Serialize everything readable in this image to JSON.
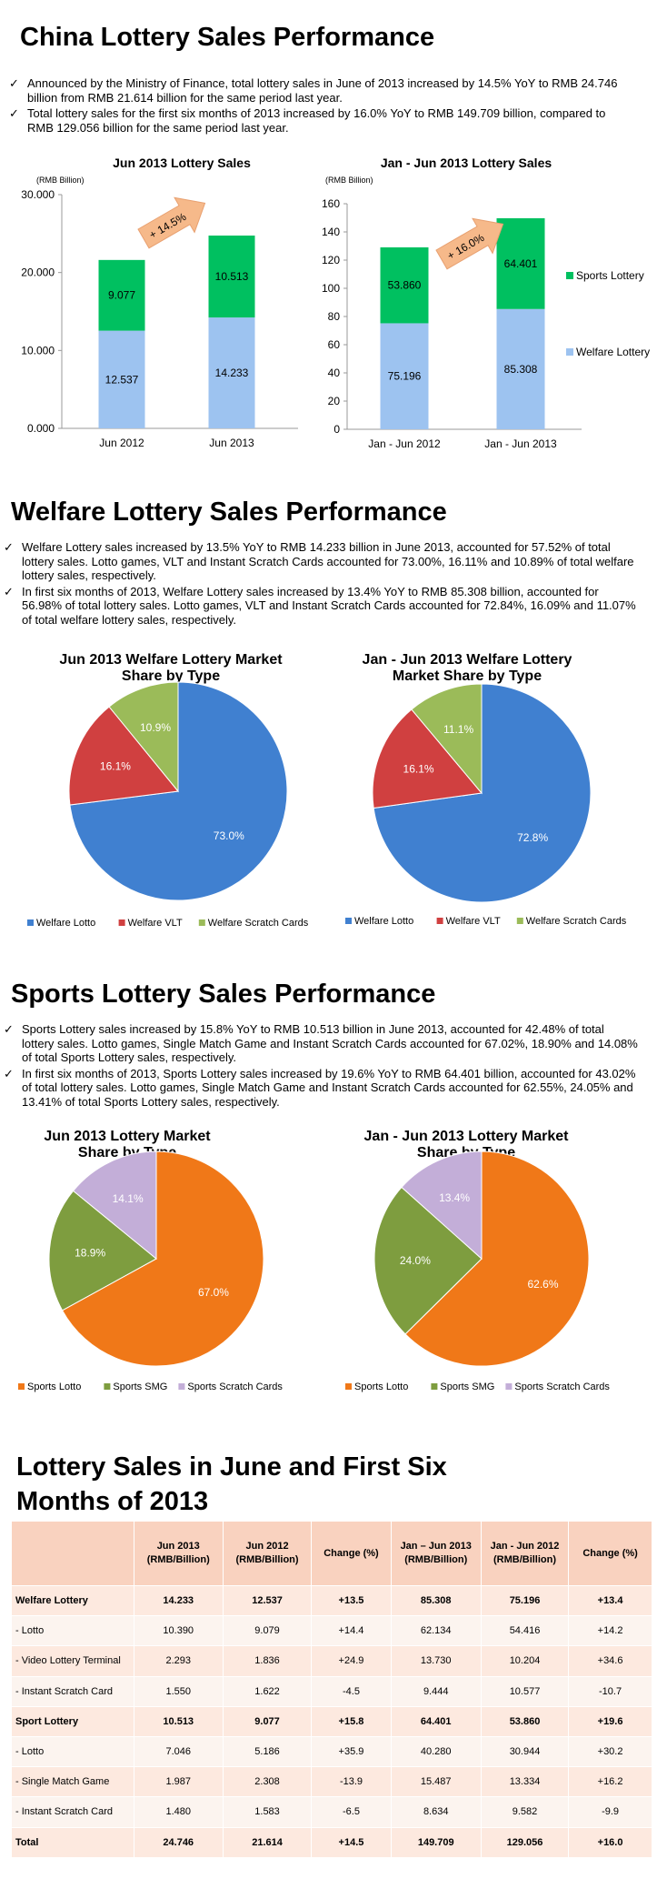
{
  "section1": {
    "title": "China Lottery Sales Performance",
    "bullets": [
      "Announced by the Ministry of Finance, total lottery sales in June of 2013 increased by 14.5% YoY to RMB 24.746 billion from RMB 21.614 billion for the same period last year.",
      "Total lottery sales for the first six months of 2013 increased by 16.0% YoY to RMB 149.709 billion, compared to RMB 129.056 billion for the same period last year."
    ]
  },
  "section2": {
    "title": "Welfare Lottery Sales Performance",
    "bullets": [
      "Welfare Lottery sales increased by 13.5% YoY to RMB 14.233 billion in June 2013, accounted for 57.52% of total lottery sales. Lotto games, VLT and Instant Scratch Cards accounted for 73.00%, 16.11% and 10.89% of total welfare lottery sales, respectively.",
      "In first six months of 2013, Welfare Lottery sales increased by 13.4% YoY to RMB 85.308 billion, accounted for 56.98% of total lottery sales. Lotto games, VLT and Instant Scratch Cards accounted for 72.84%, 16.09% and 11.07% of total welfare lottery sales, respectively."
    ]
  },
  "section3": {
    "title": "Sports Lottery Sales Performance",
    "bullets": [
      "Sports Lottery sales increased by 15.8% YoY to RMB 10.513 billion in June 2013, accounted for 42.48% of total lottery sales. Lotto games, Single Match Game and Instant Scratch Cards accounted for 67.02%, 18.90% and 14.08% of total Sports Lottery sales, respectively.",
      "In first six months of 2013, Sports Lottery sales increased by 19.6% YoY to RMB 64.401 billion, accounted for 43.02% of total lottery sales. Lotto games, Single Match Game and Instant Scratch Cards accounted for 62.55%, 24.05% and 13.41% of total Sports Lottery sales, respectively."
    ]
  },
  "section4": {
    "title_line1": "Lottery Sales in June and First Six",
    "title_line2": "Months of 2013"
  },
  "chart_data": [
    {
      "type": "bar",
      "title": "Jun 2013 Lottery Sales",
      "unit_label": "(RMB Billion)",
      "categories": [
        "Jun 2012",
        "Jun 2013"
      ],
      "series": [
        {
          "name": "Welfare Lottery",
          "values": [
            12.537,
            14.233
          ],
          "labels": [
            "12.537",
            "14.233"
          ],
          "color": "#9dc3f0"
        },
        {
          "name": "Sports Lottery",
          "values": [
            9.077,
            10.513
          ],
          "labels": [
            "9.077",
            "10.513"
          ],
          "color": "#00c060"
        }
      ],
      "ylim": [
        0,
        30
      ],
      "yticks": [
        "0.000",
        "10.000",
        "20.000",
        "30.000"
      ],
      "annotation": "+ 14.5%",
      "stacked": true
    },
    {
      "type": "bar",
      "title": "Jan - Jun 2013 Lottery Sales",
      "unit_label": "(RMB Billion)",
      "categories": [
        "Jan - Jun 2012",
        "Jan - Jun 2013"
      ],
      "series": [
        {
          "name": "Welfare Lottery",
          "values": [
            75.196,
            85.308
          ],
          "labels": [
            "75.196",
            "85.308"
          ],
          "color": "#9dc3f0"
        },
        {
          "name": "Sports Lottery",
          "values": [
            53.86,
            64.401
          ],
          "labels": [
            "53.860",
            "64.401"
          ],
          "color": "#00c060"
        }
      ],
      "ylim": [
        0,
        160
      ],
      "yticks": [
        "0",
        "20",
        "40",
        "60",
        "80",
        "100",
        "120",
        "140",
        "160"
      ],
      "annotation": "+ 16.0%",
      "legend": [
        "Sports Lottery",
        "Welfare Lottery"
      ],
      "legend_position": "right",
      "stacked": true
    },
    {
      "type": "pie",
      "title_lines": [
        "Jun 2013 Welfare Lottery Market",
        "Share by Type"
      ],
      "slices": [
        {
          "name": "Welfare Lotto",
          "value": 73.0,
          "label": "73.0%",
          "color": "#4080d0"
        },
        {
          "name": "Welfare VLT",
          "value": 16.1,
          "label": "16.1%",
          "color": "#d04040"
        },
        {
          "name": "Welfare Scratch Cards",
          "value": 10.9,
          "label": "10.9%",
          "color": "#9bbb59"
        }
      ],
      "legend_position": "bottom"
    },
    {
      "type": "pie",
      "title_lines": [
        "Jan - Jun 2013 Welfare Lottery",
        "Market Share by Type"
      ],
      "slices": [
        {
          "name": "Welfare Lotto",
          "value": 72.8,
          "label": "72.8%",
          "color": "#4080d0"
        },
        {
          "name": "Welfare VLT",
          "value": 16.1,
          "label": "16.1%",
          "color": "#d04040"
        },
        {
          "name": "Welfare Scratch Cards",
          "value": 11.1,
          "label": "11.1%",
          "color": "#9bbb59"
        }
      ],
      "legend_position": "bottom"
    },
    {
      "type": "pie",
      "title_lines": [
        "Jun 2013 Lottery Market",
        "Share by Type"
      ],
      "slices": [
        {
          "name": "Sports Lotto",
          "value": 67.0,
          "label": "67.0%",
          "color": "#f07818"
        },
        {
          "name": "Sports SMG",
          "value": 18.9,
          "label": "18.9%",
          "color": "#7e9d3f"
        },
        {
          "name": "Sports Scratch Cards",
          "value": 14.1,
          "label": "14.1%",
          "color": "#c3aed8"
        }
      ],
      "legend_position": "bottom"
    },
    {
      "type": "pie",
      "title_lines": [
        "Jan - Jun 2013 Lottery Market",
        "Share by Type"
      ],
      "slices": [
        {
          "name": "Sports Lotto",
          "value": 62.6,
          "label": "62.6%",
          "color": "#f07818"
        },
        {
          "name": "Sports SMG",
          "value": 24.0,
          "label": "24.0%",
          "color": "#7e9d3f"
        },
        {
          "name": "Sports Scratch Cards",
          "value": 13.4,
          "label": "13.4%",
          "color": "#c3aed8"
        }
      ],
      "legend_position": "bottom"
    },
    {
      "type": "table",
      "headers": [
        "",
        "Jun 2013 (RMB/Billion)",
        "Jun 2012 (RMB/Billion)",
        "Change (%)",
        "Jan – Jun 2013 (RMB/Billion)",
        "Jan - Jun 2012 (RMB/Billion)",
        "Change (%)"
      ],
      "rows": [
        {
          "bold": true,
          "cells": [
            "Welfare Lottery",
            "14.233",
            "12.537",
            "+13.5",
            "85.308",
            "75.196",
            "+13.4"
          ]
        },
        {
          "bold": false,
          "cells": [
            "- Lotto",
            "10.390",
            "9.079",
            "+14.4",
            "62.134",
            "54.416",
            "+14.2"
          ]
        },
        {
          "bold": false,
          "cells": [
            "- Video Lottery Terminal",
            "2.293",
            "1.836",
            "+24.9",
            "13.730",
            "10.204",
            "+34.6"
          ]
        },
        {
          "bold": false,
          "cells": [
            "- Instant Scratch Card",
            "1.550",
            "1.622",
            "-4.5",
            "9.444",
            "10.577",
            "-10.7"
          ]
        },
        {
          "bold": true,
          "cells": [
            "Sport Lottery",
            "10.513",
            "9.077",
            "+15.8",
            "64.401",
            "53.860",
            "+19.6"
          ]
        },
        {
          "bold": false,
          "cells": [
            "- Lotto",
            "7.046",
            "5.186",
            "+35.9",
            "40.280",
            "30.944",
            "+30.2"
          ]
        },
        {
          "bold": false,
          "cells": [
            "- Single Match Game",
            "1.987",
            "2.308",
            "-13.9",
            "15.487",
            "13.334",
            "+16.2"
          ]
        },
        {
          "bold": false,
          "cells": [
            "- Instant Scratch Card",
            "1.480",
            "1.583",
            "-6.5",
            "8.634",
            "9.582",
            "-9.9"
          ]
        },
        {
          "bold": true,
          "cells": [
            "Total",
            "24.746",
            "21.614",
            "+14.5",
            "149.709",
            "129.056",
            "+16.0"
          ]
        }
      ]
    }
  ]
}
